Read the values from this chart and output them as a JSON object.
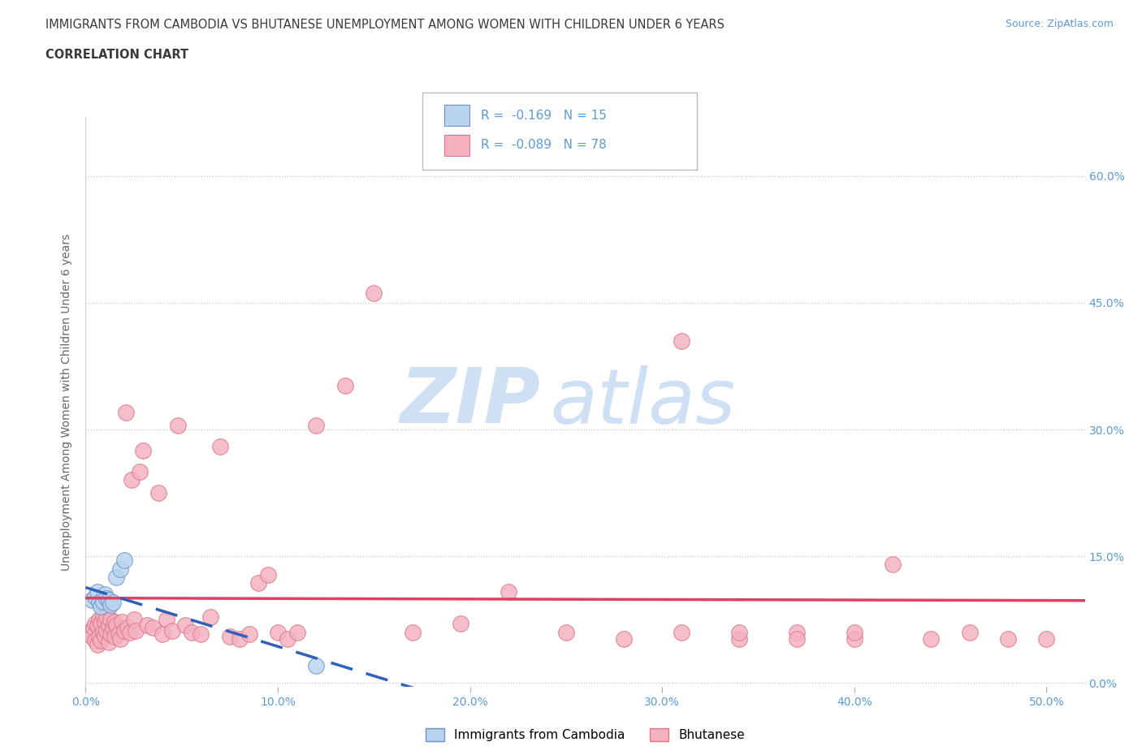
{
  "title_line1": "IMMIGRANTS FROM CAMBODIA VS BHUTANESE UNEMPLOYMENT AMONG WOMEN WITH CHILDREN UNDER 6 YEARS",
  "title_line2": "CORRELATION CHART",
  "title_color": "#3a3a3a",
  "source_text": "Source: ZipAtlas.com",
  "ylabel": "Unemployment Among Women with Children Under 6 years",
  "xlim": [
    0.0,
    0.52
  ],
  "ylim": [
    -0.005,
    0.67
  ],
  "xticks": [
    0.0,
    0.1,
    0.2,
    0.3,
    0.4,
    0.5
  ],
  "yticks": [
    0.0,
    0.15,
    0.3,
    0.45,
    0.6
  ],
  "ytick_labels_right": [
    "0.0%",
    "15.0%",
    "30.0%",
    "45.0%",
    "60.0%"
  ],
  "xtick_labels": [
    "0.0%",
    "10.0%",
    "20.0%",
    "30.0%",
    "40.0%",
    "50.0%"
  ],
  "axis_color": "#5b9bd5",
  "grid_color": "#c8c8c8",
  "background_color": "#ffffff",
  "legend_r1": "-0.169",
  "legend_n1": "15",
  "legend_r2": "-0.089",
  "legend_n2": "78",
  "cambodia_color": "#b8d4f0",
  "bhutanese_color": "#f5b0c0",
  "cambodia_edge": "#7090c8",
  "bhutanese_edge": "#d87888",
  "trend_cambodia_color": "#3060b8",
  "trend_bhutanese_color": "#e04060",
  "cambodia_x": [
    0.003,
    0.005,
    0.006,
    0.007,
    0.008,
    0.009,
    0.01,
    0.011,
    0.012,
    0.013,
    0.014,
    0.016,
    0.018,
    0.02,
    0.12
  ],
  "cambodia_y": [
    0.098,
    0.102,
    0.108,
    0.095,
    0.09,
    0.096,
    0.105,
    0.1,
    0.098,
    0.092,
    0.095,
    0.125,
    0.135,
    0.145,
    0.02
  ],
  "bhutanese_x": [
    0.002,
    0.003,
    0.004,
    0.005,
    0.005,
    0.006,
    0.006,
    0.007,
    0.007,
    0.008,
    0.008,
    0.009,
    0.009,
    0.01,
    0.01,
    0.011,
    0.011,
    0.012,
    0.012,
    0.013,
    0.013,
    0.014,
    0.015,
    0.015,
    0.016,
    0.017,
    0.018,
    0.019,
    0.02,
    0.021,
    0.022,
    0.023,
    0.024,
    0.025,
    0.026,
    0.028,
    0.03,
    0.032,
    0.035,
    0.038,
    0.04,
    0.042,
    0.045,
    0.048,
    0.052,
    0.055,
    0.06,
    0.065,
    0.07,
    0.075,
    0.08,
    0.085,
    0.09,
    0.095,
    0.1,
    0.105,
    0.11,
    0.12,
    0.135,
    0.15,
    0.17,
    0.195,
    0.22,
    0.25,
    0.28,
    0.31,
    0.34,
    0.37,
    0.4,
    0.42,
    0.44,
    0.46,
    0.48,
    0.5,
    0.31,
    0.34,
    0.37,
    0.4
  ],
  "bhutanese_y": [
    0.06,
    0.055,
    0.065,
    0.05,
    0.07,
    0.045,
    0.068,
    0.055,
    0.075,
    0.05,
    0.07,
    0.06,
    0.08,
    0.055,
    0.072,
    0.062,
    0.078,
    0.048,
    0.068,
    0.058,
    0.075,
    0.065,
    0.055,
    0.072,
    0.068,
    0.058,
    0.052,
    0.072,
    0.062,
    0.32,
    0.065,
    0.06,
    0.24,
    0.075,
    0.062,
    0.25,
    0.275,
    0.068,
    0.065,
    0.225,
    0.058,
    0.075,
    0.062,
    0.305,
    0.068,
    0.06,
    0.058,
    0.078,
    0.28,
    0.055,
    0.052,
    0.058,
    0.118,
    0.128,
    0.06,
    0.052,
    0.06,
    0.305,
    0.352,
    0.462,
    0.06,
    0.07,
    0.108,
    0.06,
    0.052,
    0.06,
    0.052,
    0.06,
    0.052,
    0.14,
    0.052,
    0.06,
    0.052,
    0.052,
    0.405,
    0.06,
    0.052,
    0.06
  ]
}
